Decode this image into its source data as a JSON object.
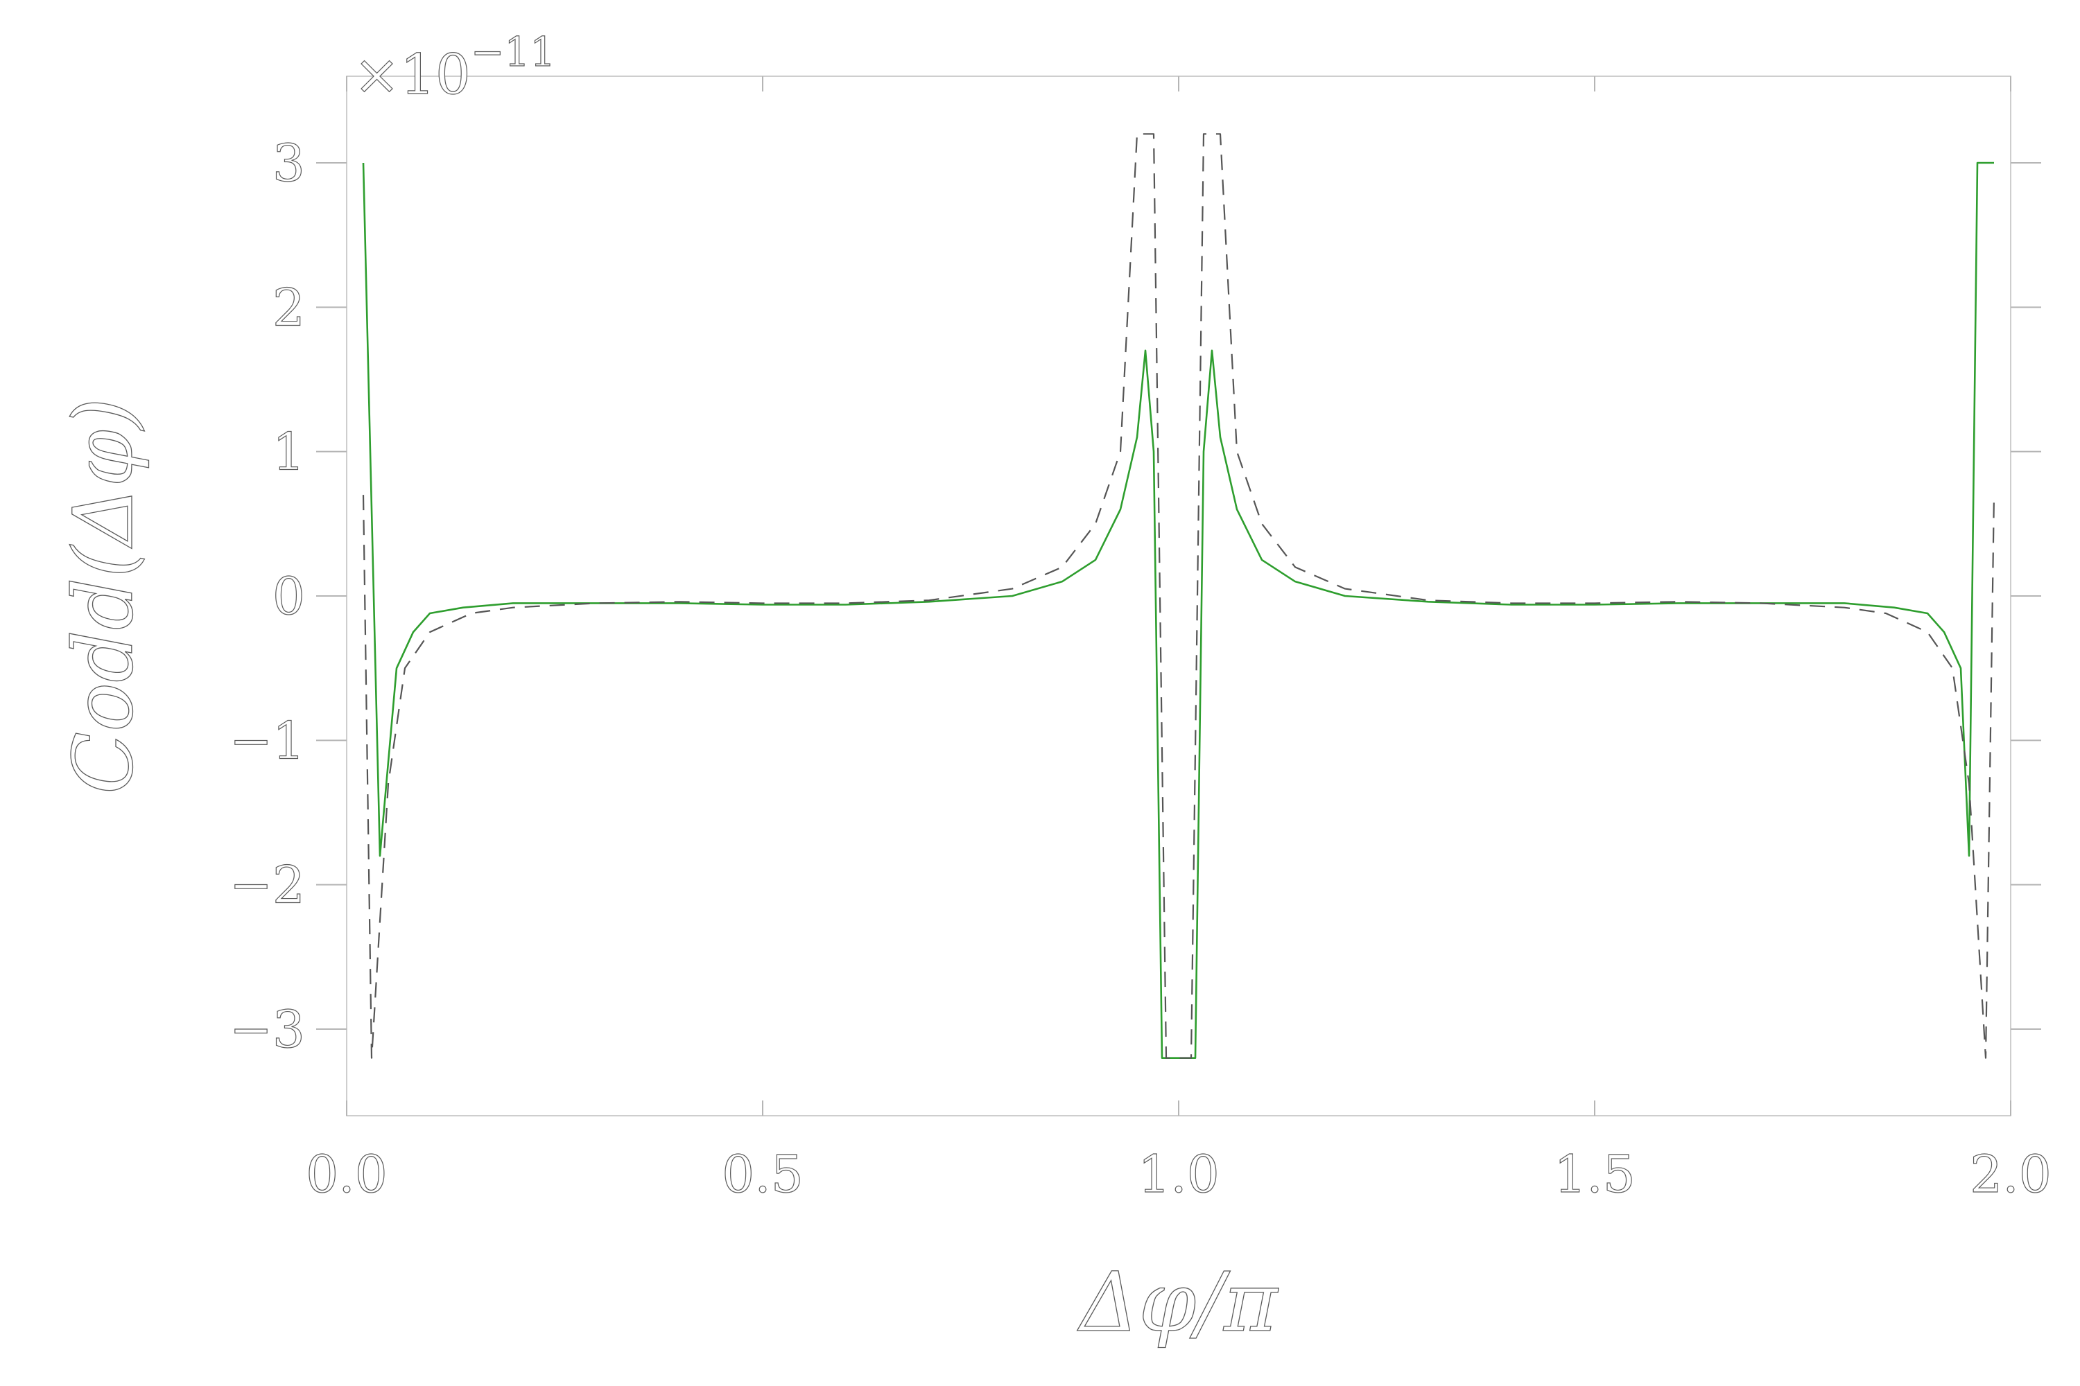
{
  "chart_data": {
    "type": "line",
    "title": "",
    "xlabel": "Δφ/π",
    "ylabel": "Codd(Δφ)",
    "y_multiplier": "×10",
    "y_multiplier_exponent": "−11",
    "xlim": [
      0.0,
      2.0
    ],
    "ylim": [
      -3.6,
      3.6
    ],
    "x_ticks": [
      0.0,
      0.5,
      1.0,
      1.5,
      2.0
    ],
    "x_tick_labels": [
      "0.0",
      "0.5",
      "1.0",
      "1.5",
      "2.0"
    ],
    "y_ticks": [
      -3,
      -2,
      -1,
      0,
      1,
      2,
      3
    ],
    "y_tick_labels": [
      "−3",
      "−2",
      "−1",
      "0",
      "1",
      "2",
      "3"
    ],
    "grid": false,
    "legend": "none",
    "series": [
      {
        "line_style": "solid",
        "color": "#2e9e2e",
        "x": [
          0.02,
          0.04,
          0.06,
          0.08,
          0.1,
          0.14,
          0.2,
          0.3,
          0.4,
          0.5,
          0.6,
          0.7,
          0.8,
          0.86,
          0.9,
          0.93,
          0.95,
          0.96,
          0.97,
          0.98,
          0.99,
          1.01,
          1.02,
          1.03,
          1.04,
          1.05,
          1.07,
          1.1,
          1.14,
          1.2,
          1.3,
          1.4,
          1.5,
          1.6,
          1.7,
          1.8,
          1.86,
          1.9,
          1.92,
          1.94,
          1.95,
          1.96,
          1.98
        ],
        "y": [
          3.0,
          -1.8,
          -0.5,
          -0.25,
          -0.12,
          -0.08,
          -0.05,
          -0.05,
          -0.05,
          -0.06,
          -0.06,
          -0.04,
          0.0,
          0.1,
          0.25,
          0.6,
          1.1,
          1.7,
          1.0,
          -3.2,
          -3.2,
          -3.2,
          -3.2,
          1.0,
          1.7,
          1.1,
          0.6,
          0.25,
          0.1,
          0.0,
          -0.04,
          -0.06,
          -0.06,
          -0.05,
          -0.05,
          -0.05,
          -0.08,
          -0.12,
          -0.25,
          -0.5,
          -1.8,
          3.0,
          3.0
        ]
      },
      {
        "line_style": "dashed",
        "color": "#555555",
        "x": [
          0.02,
          0.03,
          0.05,
          0.07,
          0.1,
          0.15,
          0.2,
          0.3,
          0.4,
          0.5,
          0.6,
          0.7,
          0.8,
          0.86,
          0.9,
          0.93,
          0.95,
          0.97,
          0.985,
          1.015,
          1.03,
          1.05,
          1.07,
          1.1,
          1.14,
          1.2,
          1.3,
          1.4,
          1.5,
          1.6,
          1.7,
          1.8,
          1.85,
          1.9,
          1.93,
          1.95,
          1.97,
          1.98
        ],
        "y": [
          0.7,
          -3.2,
          -1.3,
          -0.5,
          -0.25,
          -0.12,
          -0.08,
          -0.05,
          -0.04,
          -0.05,
          -0.05,
          -0.03,
          0.05,
          0.2,
          0.5,
          1.0,
          3.2,
          3.2,
          -3.2,
          -3.2,
          3.2,
          3.2,
          1.0,
          0.5,
          0.2,
          0.05,
          -0.03,
          -0.05,
          -0.05,
          -0.04,
          -0.05,
          -0.08,
          -0.12,
          -0.25,
          -0.5,
          -1.3,
          -3.2,
          0.7
        ]
      }
    ]
  }
}
